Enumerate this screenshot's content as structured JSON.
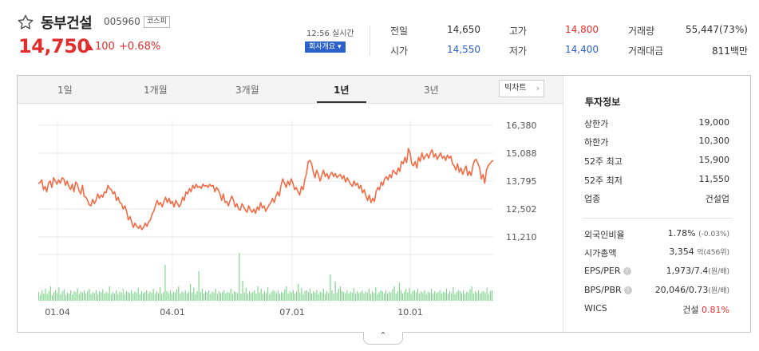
{
  "header": {
    "stock_name": "동부건설",
    "stock_code": "005960",
    "market": "코스피",
    "price": "14,750",
    "change": "100",
    "change_pct": "+0.68%",
    "time": "12:56 실시간",
    "company_btn": "회사개요 ▾"
  },
  "stats": {
    "prev_close": {
      "label": "전일",
      "value": "14,650"
    },
    "open": {
      "label": "시가",
      "value": "14,550"
    },
    "high": {
      "label": "고가",
      "value": "14,800"
    },
    "low": {
      "label": "저가",
      "value": "14,400"
    },
    "volume": {
      "label": "거래량",
      "value": "55,447(73%)"
    },
    "amount": {
      "label": "거래대금",
      "value": "811백만"
    }
  },
  "tabs": [
    "1일",
    "1개월",
    "3개월",
    "1년",
    "3년"
  ],
  "active_tab": "1년",
  "bigchart_label": "빅차트",
  "chart_data": {
    "type": "line",
    "y_ticks": [
      "16,380",
      "15,088",
      "13,795",
      "12,502",
      "11,210"
    ],
    "x_ticks": [
      "01.04",
      "04.01",
      "07.01",
      "10.01"
    ],
    "ylim": [
      11210,
      16380
    ],
    "price_series": [
      13680,
      13720,
      13850,
      13400,
      13550,
      13300,
      13700,
      13800,
      13500,
      13950,
      13800,
      13650,
      13850,
      13700,
      13950,
      13900,
      13600,
      13800,
      13550,
      13400,
      13650,
      13300,
      13750,
      13650,
      13350,
      13200,
      13600,
      13100,
      13050,
      12900,
      12700,
      12650,
      12950,
      12750,
      12900,
      13200,
      13000,
      13150,
      13050,
      13300,
      13250,
      13600,
      13450,
      13400,
      13200,
      13300,
      12900,
      13050,
      12800,
      12750,
      12500,
      12650,
      12400,
      12000,
      12150,
      11900,
      11650,
      11850,
      11700,
      11600,
      11750,
      11550,
      11650,
      11850,
      11700,
      11900,
      12000,
      12250,
      12400,
      12650,
      12900,
      12700,
      12800,
      12600,
      12850,
      13050,
      12800,
      13000,
      12750,
      12850,
      12600,
      12900,
      12750,
      12600,
      12750,
      13050,
      12900,
      13300,
      13200,
      13450,
      13300,
      13600,
      13450,
      13650,
      13500,
      13550,
      13450,
      13650,
      13550,
      13600,
      13500,
      13650,
      13550,
      13600,
      13300,
      13500,
      13400,
      13200,
      12900,
      13200,
      12800,
      12850,
      12650,
      12900,
      13100,
      12900,
      12600,
      12750,
      12500,
      12450,
      12750,
      12600,
      12450,
      12350,
      12650,
      12450,
      12350,
      12500,
      12300,
      12600,
      12450,
      12800,
      12550,
      12650,
      12400,
      12550,
      12700,
      12800,
      13000,
      12800,
      13100,
      13300,
      13100,
      13600,
      13900,
      13700,
      13500,
      13800,
      13600,
      13900,
      13700,
      13400,
      13500,
      13300,
      13150,
      13550,
      13400,
      13850,
      14150,
      14700,
      14750,
      14600,
      14200,
      13950,
      14300,
      14100,
      13800,
      14050,
      14300,
      14000,
      14150,
      13900,
      14100,
      14200,
      14000,
      14150,
      13950,
      14050,
      14100,
      13900,
      14050,
      13750,
      13950,
      13800,
      13650,
      13550,
      13800,
      13600,
      13700,
      13450,
      13600,
      13250,
      13400,
      13100,
      12900,
      13150,
      12800,
      13000,
      12850,
      13300,
      13500,
      13400,
      13750,
      13600,
      13900,
      14000,
      13850,
      14100,
      13950,
      14300,
      14200,
      14100,
      14400,
      14250,
      14700,
      14600,
      14900,
      14650,
      15300,
      15100,
      14600,
      14500,
      14700,
      14400,
      14900,
      14700,
      15100,
      14800,
      14950,
      15050,
      14850,
      15100,
      15250,
      14900,
      15050,
      14800,
      14950,
      15100,
      14850,
      14950,
      14750,
      15000,
      14850,
      14950,
      14600,
      14500,
      14300,
      14600,
      14200,
      14400,
      14100,
      14300,
      14500,
      14050,
      14250,
      14050,
      14500,
      14750,
      14800,
      14600,
      14400,
      13900,
      14100,
      13700,
      14300,
      14500,
      14600,
      14700,
      14750
    ],
    "volume_series": [
      0.18,
      0.12,
      0.22,
      0.15,
      0.25,
      0.14,
      0.2,
      0.3,
      0.12,
      0.18,
      0.22,
      0.16,
      0.28,
      0.14,
      0.2,
      0.24,
      0.12,
      0.17,
      0.15,
      0.22,
      0.13,
      0.2,
      0.18,
      0.26,
      0.14,
      0.19,
      0.17,
      0.22,
      0.15,
      0.2,
      0.25,
      0.14,
      0.18,
      0.16,
      0.22,
      0.13,
      0.2,
      0.17,
      0.24,
      0.15,
      0.19,
      0.16,
      0.3,
      0.13,
      0.18,
      0.15,
      0.22,
      0.14,
      0.19,
      0.17,
      0.25,
      0.14,
      0.2,
      0.18,
      0.16,
      0.22,
      0.15,
      0.19,
      0.17,
      0.27,
      0.14,
      0.2,
      0.16,
      0.18,
      0.22,
      0.15,
      0.19,
      0.17,
      0.25,
      0.14,
      0.2,
      0.16,
      0.28,
      0.14,
      0.18,
      0.75,
      0.2,
      0.16,
      0.22,
      0.14,
      0.19,
      0.17,
      0.24,
      0.3,
      0.15,
      0.2,
      0.17,
      0.22,
      0.15,
      0.19,
      0.35,
      0.17,
      0.27,
      0.14,
      0.2,
      0.62,
      0.18,
      0.25,
      0.15,
      0.2,
      0.17,
      0.22,
      0.14,
      0.19,
      0.17,
      0.25,
      0.14,
      0.2,
      0.16,
      0.18,
      0.22,
      0.15,
      0.19,
      0.17,
      0.25,
      0.14,
      0.2,
      0.18,
      0.16,
      1.0,
      0.15,
      0.42,
      0.17,
      0.27,
      0.14,
      0.2,
      0.16,
      0.18,
      0.22,
      0.15,
      0.3,
      0.17,
      0.25,
      0.14,
      0.2,
      0.16,
      0.28,
      0.14,
      0.18,
      0.22,
      0.2,
      0.16,
      0.22,
      0.14,
      0.19,
      0.17,
      0.24,
      0.3,
      0.15,
      0.2,
      0.17,
      0.22,
      0.15,
      0.19,
      0.35,
      0.17,
      0.27,
      0.14,
      0.2,
      0.22,
      0.18,
      0.25,
      0.15,
      0.2,
      0.17,
      0.22,
      0.14,
      0.19,
      0.17,
      0.25,
      0.14,
      0.2,
      0.16,
      0.55,
      0.22,
      0.15,
      0.4,
      0.17,
      0.25,
      0.3,
      0.2,
      0.18,
      0.16,
      0.22,
      0.15,
      0.19,
      0.17,
      0.27,
      0.14,
      0.2,
      0.16,
      0.18,
      0.22,
      0.15,
      0.19,
      0.17,
      0.25,
      0.14,
      0.2,
      0.16,
      0.28,
      0.14,
      0.18,
      0.22,
      0.2,
      0.16,
      0.22,
      0.14,
      0.19,
      0.17,
      0.24,
      0.3,
      0.15,
      0.2,
      0.38,
      0.22,
      0.15,
      0.19,
      0.25,
      0.17,
      0.27,
      0.14,
      0.2,
      0.22,
      0.18,
      0.25,
      0.15,
      0.2,
      0.17,
      0.22,
      0.14,
      0.19,
      0.17,
      0.25,
      0.14,
      0.2,
      0.16,
      0.18,
      0.22,
      0.15,
      0.19,
      0.17,
      0.25,
      0.14,
      0.2,
      0.16,
      0.28,
      0.14,
      0.18,
      0.22,
      0.2,
      0.16,
      0.22,
      0.14,
      0.19,
      0.17,
      0.24,
      0.3,
      0.15,
      0.2,
      0.17,
      0.22,
      0.15,
      0.19,
      0.2,
      0.17,
      0.27,
      0.14,
      0.2,
      0.22
    ]
  },
  "info": {
    "title": "투자정보",
    "upper_limit": {
      "label": "상한가",
      "value": "19,000"
    },
    "lower_limit": {
      "label": "하한가",
      "value": "10,300"
    },
    "high_52w": {
      "label": "52주 최고",
      "value": "15,900"
    },
    "low_52w": {
      "label": "52주 최저",
      "value": "11,550"
    },
    "industry": {
      "label": "업종",
      "value": "건설업"
    },
    "foreign_ratio": {
      "label": "외국인비율",
      "value": "1.78%",
      "sub": "(-0.03%)"
    },
    "market_cap": {
      "label": "시가총액",
      "value": "3,354",
      "unit": "억",
      "sub": "(456위)"
    },
    "eps_per": {
      "label": "EPS/PER",
      "value": "1,973/7.4",
      "sub": "(원/배)"
    },
    "bps_pbr": {
      "label": "BPS/PBR",
      "value": "20,046/0.73",
      "sub": "(원/배)"
    },
    "wics": {
      "label": "WICS",
      "value": "건설",
      "pct": "0.81%"
    }
  },
  "colors": {
    "up": "#e22d2d",
    "down": "#2b61c9",
    "price_line": "#f26b44",
    "volume_bar": "#7ed48c"
  },
  "toggle_icon": "chevron-up-icon"
}
